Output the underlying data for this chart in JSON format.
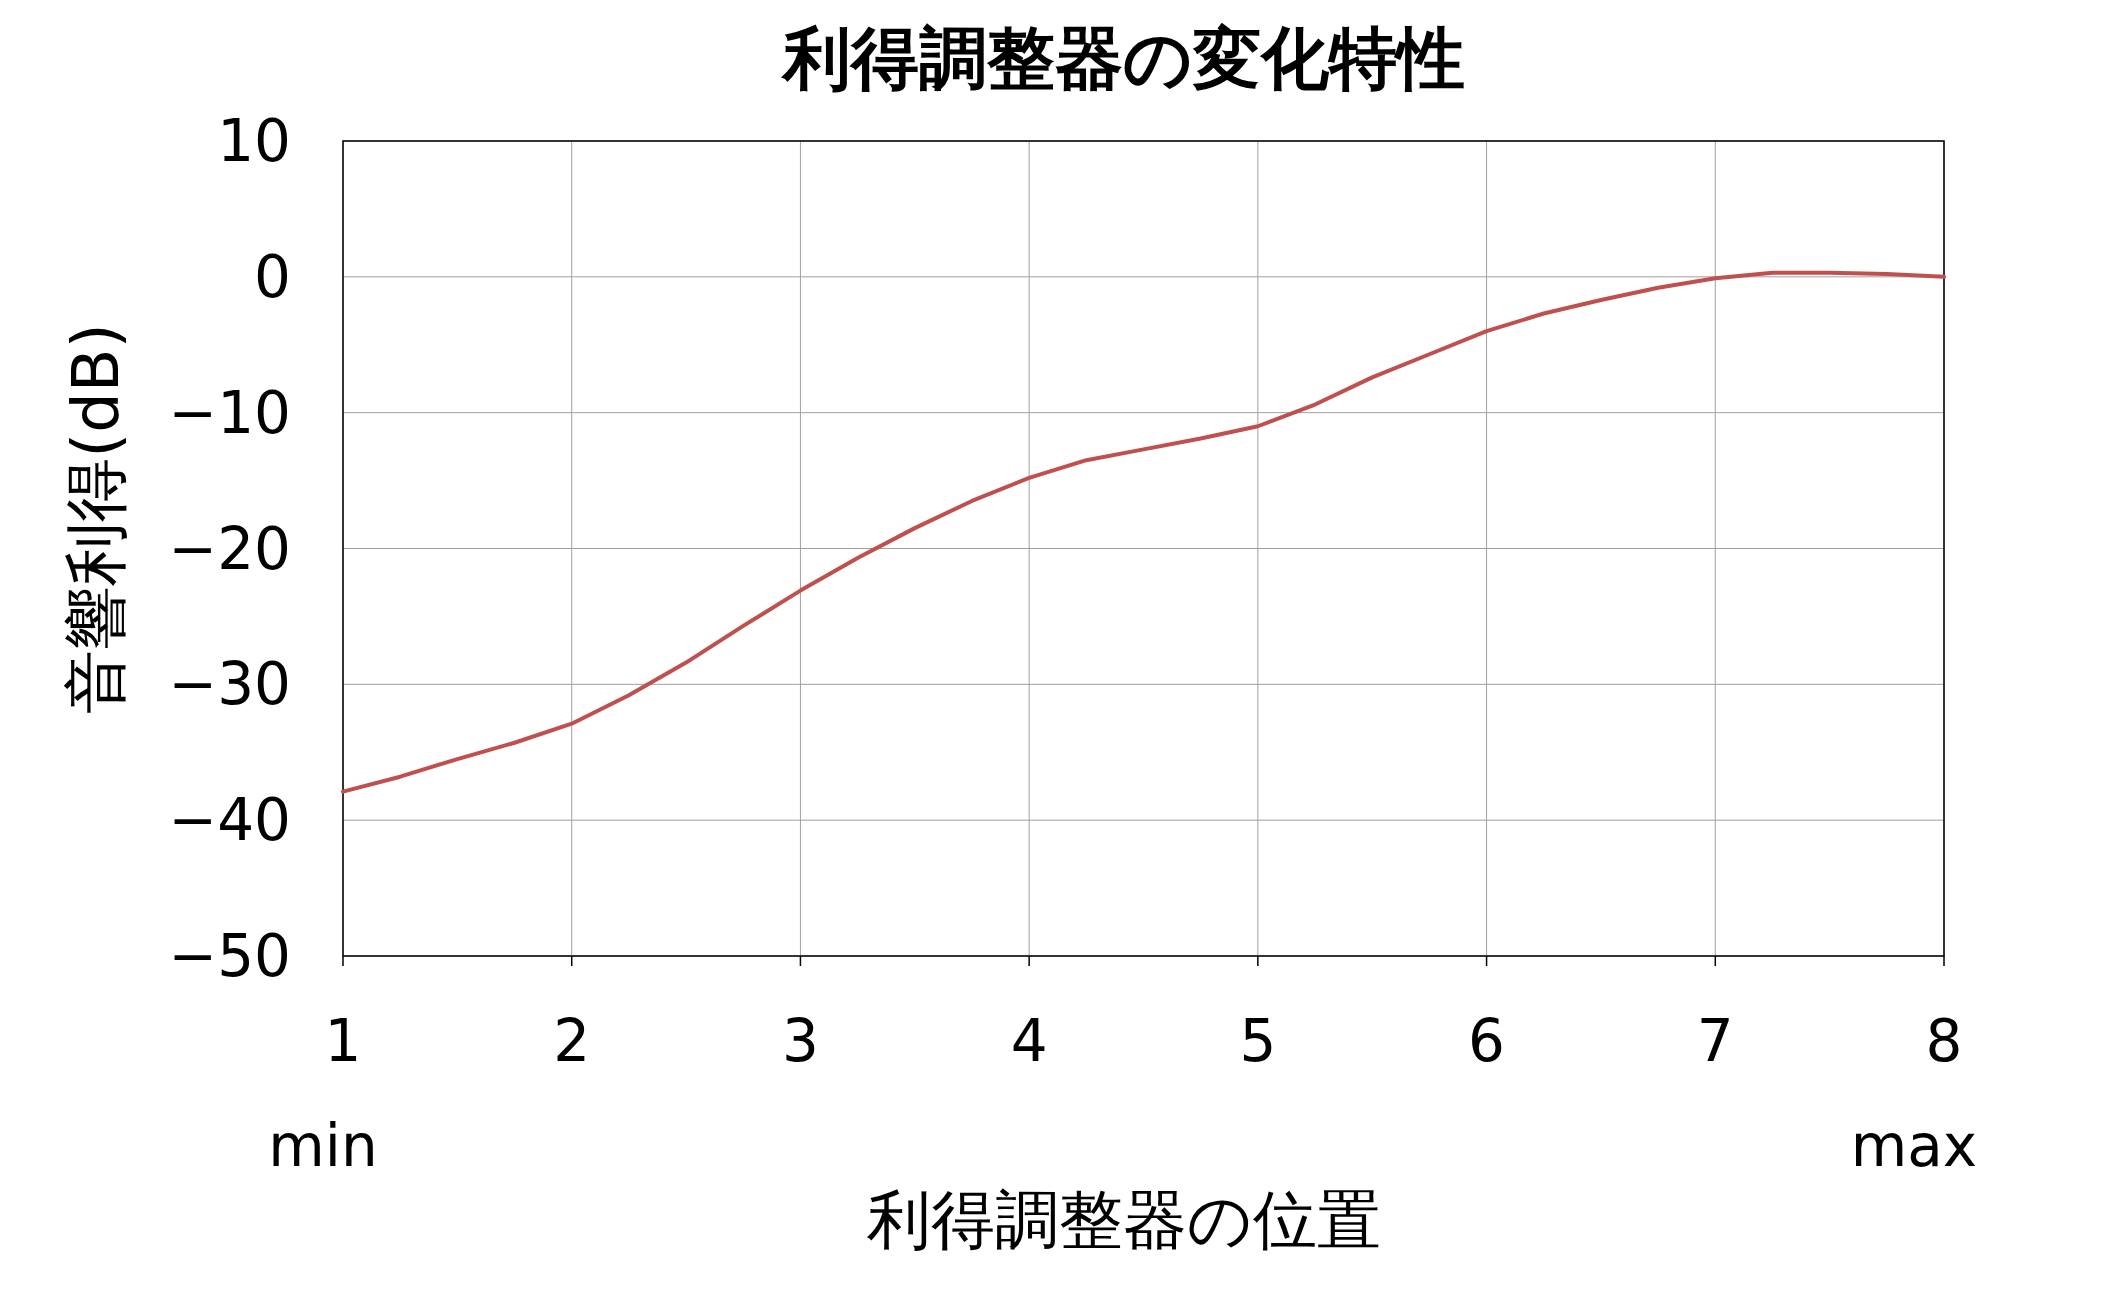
{
  "chart_data": {
    "type": "line",
    "title": "利得調整器の変化特性",
    "xlabel": "利得調整器の位置",
    "ylabel": "音響利得(dB)",
    "x": [
      1,
      1.25,
      1.5,
      1.75,
      2,
      2.25,
      2.5,
      2.75,
      3,
      3.25,
      3.5,
      3.75,
      4,
      4.25,
      4.5,
      4.75,
      5,
      5.25,
      5.5,
      5.75,
      6,
      6.25,
      6.5,
      6.75,
      7,
      7.25,
      7.5,
      7.75,
      8
    ],
    "series": [
      {
        "color": "#c0504d",
        "values": [
          -37.9,
          -36.8,
          -35.5,
          -34.3,
          -32.9,
          -30.8,
          -28.4,
          -25.7,
          -23.1,
          -20.7,
          -18.5,
          -16.5,
          -14.8,
          -13.5,
          -12.7,
          -11.9,
          -11.0,
          -9.4,
          -7.4,
          -5.7,
          -4.0,
          -2.7,
          -1.7,
          -0.8,
          -0.1,
          0.3,
          0.3,
          0.2,
          0
        ]
      }
    ],
    "xlim": [
      1,
      8
    ],
    "xticks": [
      1,
      2,
      3,
      4,
      5,
      6,
      7,
      8
    ],
    "ylim": [
      -50,
      10
    ],
    "yticks": [
      -50,
      -40,
      -30,
      -20,
      -10,
      0,
      10
    ],
    "annotations": [
      "min",
      "max"
    ],
    "grid": true,
    "marker": "none",
    "line_style": "solid"
  }
}
